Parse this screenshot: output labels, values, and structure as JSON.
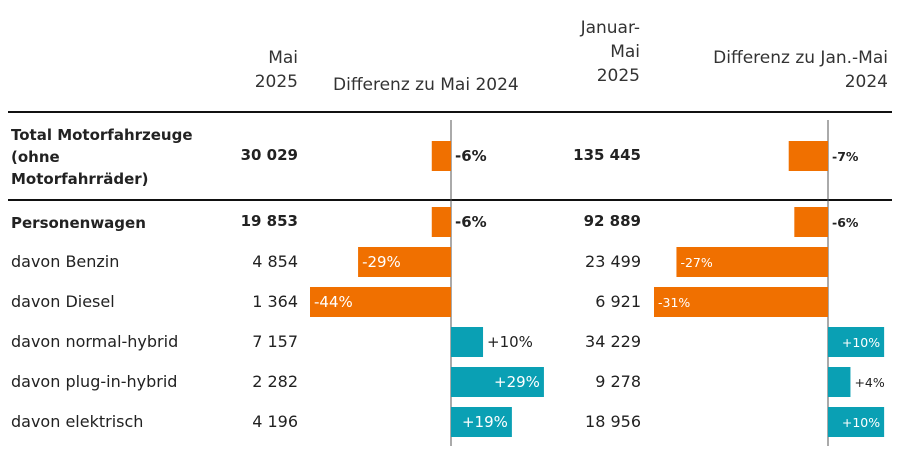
{
  "headers": {
    "col1_line1": "Mai",
    "col1_line2": "2025",
    "col2": "Differenz zu Mai 2024",
    "col3_line1": "Januar-",
    "col3_line2": "Mai",
    "col3_line3": "2025",
    "col4_line1": "Differenz zu Jan.-Mai",
    "col4_line2": "2024"
  },
  "rows": [
    {
      "label_lines": [
        "Total Motorfahrzeuge",
        "(ohne",
        "Motorfahrräder)"
      ],
      "bold": true,
      "value_may": "30 029",
      "diff_may": "-6%",
      "value_ytd": "135 445",
      "diff_ytd": "-7%"
    },
    {
      "label": "Personenwagen",
      "bold": true,
      "value_may": "19 853",
      "diff_may": "-6%",
      "value_ytd": "92 889",
      "diff_ytd": "-6%"
    },
    {
      "label": "davon Benzin",
      "bold": false,
      "value_may": "4 854",
      "diff_may": "-29%",
      "value_ytd": "23 499",
      "diff_ytd": "-27%"
    },
    {
      "label": "davon Diesel",
      "bold": false,
      "value_may": "1 364",
      "diff_may": "-44%",
      "value_ytd": "6 921",
      "diff_ytd": "-31%"
    },
    {
      "label": "davon normal-hybrid",
      "bold": false,
      "value_may": "7 157",
      "diff_may": "+10%",
      "value_ytd": "34 229",
      "diff_ytd": "+10%"
    },
    {
      "label": "davon plug-in-hybrid",
      "bold": false,
      "value_may": "2 282",
      "diff_may": "+29%",
      "value_ytd": "9 278",
      "diff_ytd": "+4%"
    },
    {
      "label": "davon elektrisch",
      "bold": false,
      "value_may": "4 196",
      "diff_may": "+19%",
      "value_ytd": "18 956",
      "diff_ytd": "+10%"
    }
  ],
  "chart_data": [
    {
      "type": "bar",
      "title": "Differenz zu Mai 2024",
      "categories": [
        "Total Motorfahrzeuge (ohne Motorfahrräder)",
        "Personenwagen",
        "davon Benzin",
        "davon Diesel",
        "davon normal-hybrid",
        "davon plug-in-hybrid",
        "davon elektrisch"
      ],
      "values": [
        -6,
        -6,
        -29,
        -44,
        10,
        29,
        19
      ],
      "unit": "%"
    },
    {
      "type": "bar",
      "title": "Differenz zu Jan.-Mai 2024",
      "categories": [
        "Total Motorfahrzeuge (ohne Motorfahrräder)",
        "Personenwagen",
        "davon Benzin",
        "davon Diesel",
        "davon normal-hybrid",
        "davon plug-in-hybrid",
        "davon elektrisch"
      ],
      "values": [
        -7,
        -6,
        -27,
        -31,
        10,
        4,
        10
      ],
      "unit": "%"
    }
  ],
  "colors": {
    "negative": "#f07000",
    "positive": "#0aa0b4",
    "axis": "#555555",
    "text_dark": "#222222",
    "text_light": "#ffffff"
  }
}
